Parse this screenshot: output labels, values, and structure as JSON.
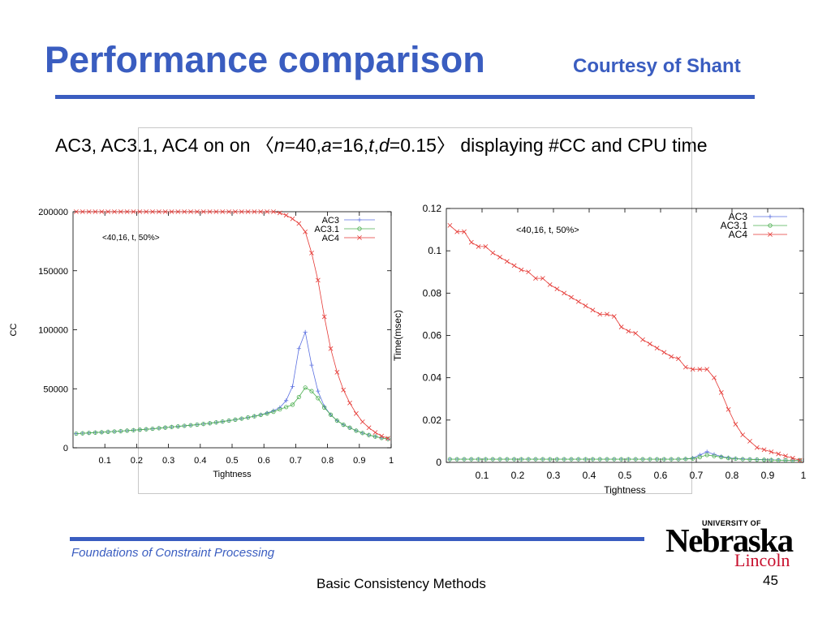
{
  "slide": {
    "title": "Performance comparison",
    "courtesy": "Courtesy of Shant",
    "subtitle_parts": [
      "AC3, AC3.1, AC4 on on 〈",
      "n",
      "=40,",
      "a",
      "=16,",
      "t",
      ",",
      "d",
      "=0.15〉 displaying #CC and CPU time"
    ],
    "footer_course": "Foundations of Constraint Processing",
    "footer_center": "Basic Consistency Methods",
    "page_number": "45",
    "accent_color": "#3a5dc0"
  },
  "logo": {
    "university": "UNIVERSITY OF",
    "name": "Nebraska",
    "campus": "Lincoln",
    "campus_color": "#c8102e"
  },
  "chart_data": [
    {
      "type": "line",
      "annotation": "<40,16, t, 50%>",
      "xlabel": "Tightness",
      "ylabel": "CC",
      "xlim": [
        0,
        1
      ],
      "ylim": [
        0,
        200000
      ],
      "xticks": [
        0.1,
        0.2,
        0.3,
        0.4,
        0.5,
        0.6,
        0.7,
        0.8,
        0.9,
        1
      ],
      "xtick_labels": [
        "0.1",
        "0.2",
        "0.3",
        "0.4",
        "0.5",
        "0.6",
        "0.7",
        "0.8",
        "0.9",
        "1"
      ],
      "yticks": [
        0,
        50000,
        100000,
        150000,
        200000
      ],
      "ytick_labels": [
        "0",
        "50000",
        "100000",
        "150000",
        "200000"
      ],
      "legend_position": "top-right",
      "x": [
        0.01,
        0.03,
        0.05,
        0.07,
        0.09,
        0.11,
        0.13,
        0.15,
        0.17,
        0.19,
        0.21,
        0.23,
        0.25,
        0.27,
        0.29,
        0.31,
        0.33,
        0.35,
        0.37,
        0.39,
        0.41,
        0.43,
        0.45,
        0.47,
        0.49,
        0.51,
        0.53,
        0.55,
        0.57,
        0.59,
        0.61,
        0.63,
        0.65,
        0.67,
        0.69,
        0.71,
        0.73,
        0.75,
        0.77,
        0.79,
        0.81,
        0.83,
        0.85,
        0.87,
        0.89,
        0.91,
        0.93,
        0.95,
        0.97,
        0.99
      ],
      "series": [
        {
          "name": "AC3",
          "color": "#5a6fe0",
          "marker": "plus",
          "values": [
            12000,
            12300,
            12600,
            12900,
            13200,
            13500,
            13800,
            14100,
            14500,
            14900,
            15300,
            15700,
            16100,
            16600,
            17100,
            17600,
            18100,
            18600,
            19100,
            19600,
            20200,
            20800,
            21500,
            22200,
            23000,
            23800,
            24700,
            25700,
            26800,
            28000,
            29500,
            31500,
            34000,
            40000,
            52000,
            84000,
            98000,
            70000,
            48000,
            35000,
            28000,
            23000,
            19500,
            17000,
            14500,
            12500,
            10800,
            9500,
            8300,
            7500
          ]
        },
        {
          "name": "AC3.1",
          "color": "#4caf50",
          "marker": "circle",
          "values": [
            12000,
            12300,
            12600,
            12900,
            13200,
            13500,
            13800,
            14100,
            14500,
            14900,
            15300,
            15700,
            16100,
            16600,
            17100,
            17600,
            18100,
            18600,
            19100,
            19600,
            20200,
            20800,
            21500,
            22200,
            23000,
            23800,
            24700,
            25700,
            26700,
            27800,
            29000,
            30500,
            32500,
            34500,
            36500,
            43000,
            51000,
            48000,
            42000,
            34000,
            28000,
            23000,
            19500,
            17000,
            14500,
            12500,
            10800,
            9500,
            8300,
            7500
          ]
        },
        {
          "name": "AC4",
          "color": "#e53935",
          "marker": "cross",
          "values": [
            200000,
            200000,
            200000,
            200000,
            200000,
            200000,
            200000,
            200000,
            200000,
            200000,
            200000,
            200000,
            200000,
            200000,
            200000,
            200000,
            200000,
            200000,
            200000,
            200000,
            200000,
            200000,
            200000,
            200000,
            200000,
            200000,
            200000,
            200000,
            200000,
            200000,
            200000,
            200000,
            199000,
            197000,
            194000,
            190000,
            183000,
            165000,
            142000,
            111000,
            84000,
            64000,
            49000,
            38000,
            29000,
            22000,
            17000,
            13000,
            10000,
            8000
          ]
        }
      ]
    },
    {
      "type": "line",
      "annotation": "<40,16, t, 50%>",
      "xlabel": "Tightness",
      "ylabel": "Time(msec)",
      "xlim": [
        0,
        1
      ],
      "ylim": [
        0,
        0.12
      ],
      "xticks": [
        0.1,
        0.2,
        0.3,
        0.4,
        0.5,
        0.6,
        0.7,
        0.8,
        0.9,
        1
      ],
      "xtick_labels": [
        "0.1",
        "0.2",
        "0.3",
        "0.4",
        "0.5",
        "0.6",
        "0.7",
        "0.8",
        "0.9",
        "1"
      ],
      "yticks": [
        0,
        0.02,
        0.04,
        0.06,
        0.08,
        0.1,
        0.12
      ],
      "ytick_labels": [
        "0",
        "0.02",
        "0.04",
        "0.06",
        "0.08",
        "0.1",
        "0.12"
      ],
      "legend_position": "top-right",
      "x": [
        0.01,
        0.03,
        0.05,
        0.07,
        0.09,
        0.11,
        0.13,
        0.15,
        0.17,
        0.19,
        0.21,
        0.23,
        0.25,
        0.27,
        0.29,
        0.31,
        0.33,
        0.35,
        0.37,
        0.39,
        0.41,
        0.43,
        0.45,
        0.47,
        0.49,
        0.51,
        0.53,
        0.55,
        0.57,
        0.59,
        0.61,
        0.63,
        0.65,
        0.67,
        0.69,
        0.71,
        0.73,
        0.75,
        0.77,
        0.79,
        0.81,
        0.83,
        0.85,
        0.87,
        0.89,
        0.91,
        0.93,
        0.95,
        0.97,
        0.99
      ],
      "series": [
        {
          "name": "AC3",
          "color": "#5a6fe0",
          "marker": "plus",
          "values": [
            0.0015,
            0.0015,
            0.0015,
            0.0015,
            0.0015,
            0.0015,
            0.0015,
            0.0015,
            0.0015,
            0.0015,
            0.0015,
            0.0015,
            0.0015,
            0.0015,
            0.0015,
            0.0015,
            0.0015,
            0.0015,
            0.0015,
            0.0015,
            0.0015,
            0.0015,
            0.0015,
            0.0015,
            0.0015,
            0.0015,
            0.0015,
            0.0015,
            0.0015,
            0.0015,
            0.0015,
            0.0015,
            0.0015,
            0.0017,
            0.002,
            0.0035,
            0.005,
            0.0038,
            0.0028,
            0.0022,
            0.0018,
            0.0016,
            0.0015,
            0.0014,
            0.0013,
            0.0012,
            0.0011,
            0.001,
            0.001,
            0.001
          ]
        },
        {
          "name": "AC3.1",
          "color": "#4caf50",
          "marker": "circle",
          "values": [
            0.0015,
            0.0015,
            0.0015,
            0.0015,
            0.0015,
            0.0015,
            0.0015,
            0.0015,
            0.0015,
            0.0015,
            0.0015,
            0.0015,
            0.0015,
            0.0015,
            0.0015,
            0.0015,
            0.0015,
            0.0015,
            0.0015,
            0.0015,
            0.0015,
            0.0015,
            0.0015,
            0.0015,
            0.0015,
            0.0015,
            0.0015,
            0.0015,
            0.0015,
            0.0015,
            0.0015,
            0.0015,
            0.0015,
            0.0016,
            0.0018,
            0.0025,
            0.0035,
            0.003,
            0.0025,
            0.002,
            0.0017,
            0.0015,
            0.0014,
            0.0013,
            0.0012,
            0.0011,
            0.001,
            0.001,
            0.001,
            0.001
          ]
        },
        {
          "name": "AC4",
          "color": "#e53935",
          "marker": "cross",
          "values": [
            0.112,
            0.109,
            0.109,
            0.104,
            0.102,
            0.102,
            0.099,
            0.097,
            0.095,
            0.093,
            0.091,
            0.09,
            0.087,
            0.087,
            0.084,
            0.082,
            0.08,
            0.078,
            0.076,
            0.074,
            0.072,
            0.07,
            0.07,
            0.069,
            0.064,
            0.062,
            0.061,
            0.058,
            0.056,
            0.054,
            0.052,
            0.05,
            0.049,
            0.045,
            0.044,
            0.044,
            0.044,
            0.04,
            0.033,
            0.025,
            0.018,
            0.013,
            0.01,
            0.007,
            0.006,
            0.005,
            0.004,
            0.003,
            0.002,
            0.001
          ]
        }
      ]
    }
  ]
}
